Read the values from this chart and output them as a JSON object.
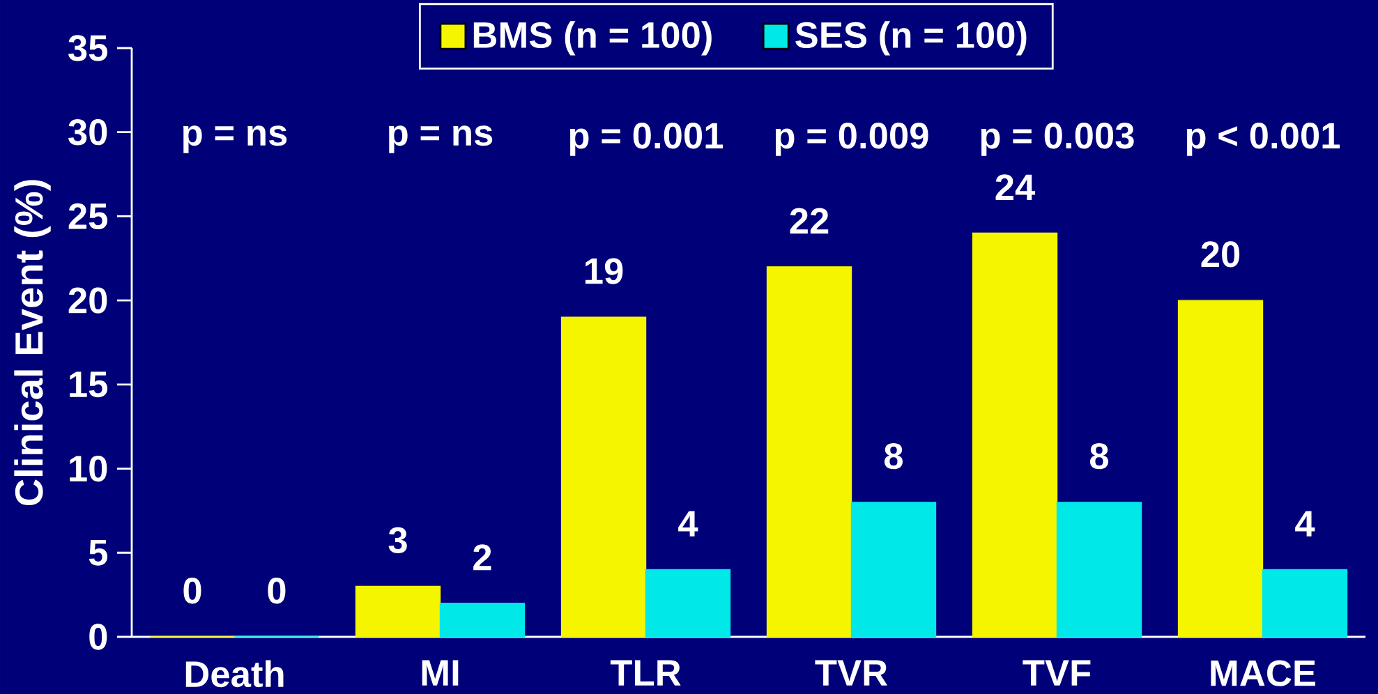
{
  "chart_data": {
    "type": "bar",
    "ylabel": "Clinical Event (%)",
    "categories": [
      "Death",
      "MI",
      "TLR",
      "TVR",
      "TVF",
      "MACE"
    ],
    "series": [
      {
        "name": "BMS (n = 100)",
        "color": "#f5f500",
        "values": [
          0,
          3,
          19,
          22,
          24,
          20
        ]
      },
      {
        "name": "SES (n = 100)",
        "color": "#00e8e8",
        "values": [
          0,
          2,
          4,
          8,
          8,
          4
        ]
      }
    ],
    "ylim": [
      0,
      35
    ],
    "yticks": [
      0,
      5,
      10,
      15,
      20,
      25,
      30,
      35
    ],
    "data_labels": true,
    "legend": "top",
    "grid": false,
    "annotations": [
      "p = ns",
      "p = ns",
      "p = 0.001",
      "p = 0.009",
      "p = 0.003",
      "p < 0.001"
    ]
  }
}
